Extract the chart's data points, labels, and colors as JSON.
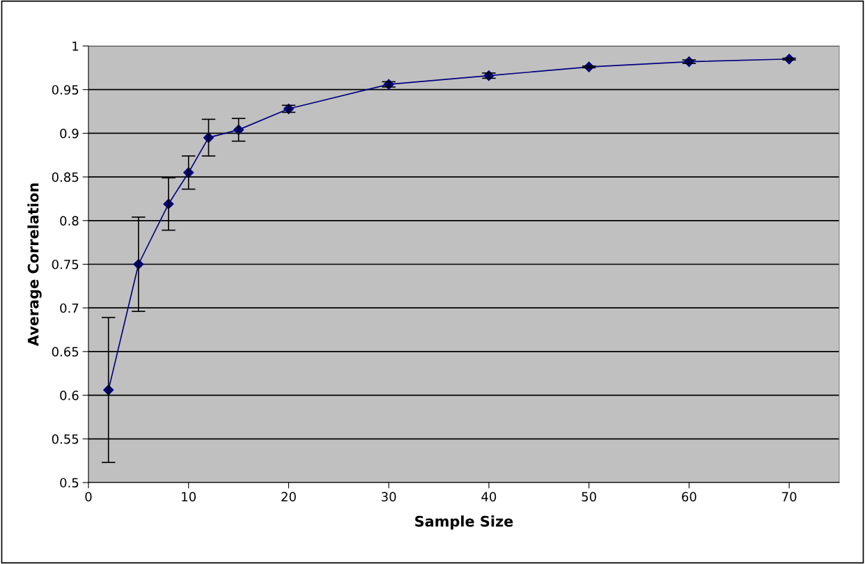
{
  "chart_data": {
    "type": "line",
    "xlabel": "Sample Size",
    "ylabel": "Average Correlation",
    "x": [
      2,
      5,
      8,
      10,
      12,
      15,
      20,
      30,
      40,
      50,
      60,
      70
    ],
    "series": [
      {
        "color": "#000080",
        "values": [
          0.606,
          0.75,
          0.819,
          0.855,
          0.895,
          0.904,
          0.928,
          0.956,
          0.966,
          0.976,
          0.982,
          0.985
        ],
        "errors": [
          0.083,
          0.054,
          0.03,
          0.019,
          0.021,
          0.013,
          0.004,
          0.003,
          0.003,
          0.001,
          0.002,
          0.001
        ]
      }
    ],
    "xlim": [
      0,
      75
    ],
    "xticks": [
      0,
      10,
      20,
      30,
      40,
      50,
      60,
      70
    ],
    "ylim": [
      0.5,
      1
    ],
    "yticks": [
      0.5,
      0.55,
      0.6,
      0.65,
      0.7,
      0.75,
      0.8,
      0.85,
      0.9,
      0.95,
      1
    ],
    "grid": "y",
    "legend": false,
    "marker": "diamond",
    "line_style": "solid"
  }
}
